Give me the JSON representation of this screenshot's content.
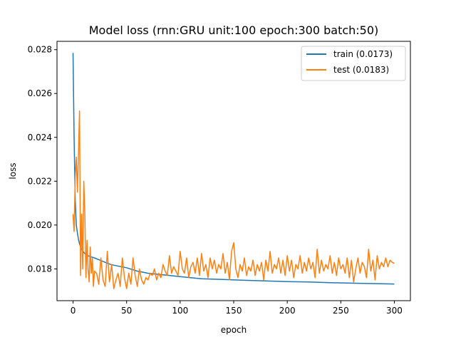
{
  "chart_data": {
    "type": "line",
    "title": "Model loss (rnn:GRU unit:100 epoch:300 batch:50)",
    "xlabel": "epoch",
    "ylabel": "loss",
    "xlim": [
      -15,
      315
    ],
    "ylim": [
      0.01655,
      0.02838
    ],
    "xticks": [
      0,
      50,
      100,
      150,
      200,
      250,
      300
    ],
    "yticks": [
      0.018,
      0.02,
      0.022,
      0.024,
      0.026,
      0.028
    ],
    "ytick_labels": [
      "0.018",
      "0.020",
      "0.022",
      "0.024",
      "0.026",
      "0.028"
    ],
    "grid": false,
    "legend_position": "upper right",
    "series": [
      {
        "name": "train (0.0173)",
        "color": "#1f77b4",
        "x": [
          0,
          1,
          2,
          3,
          4,
          5,
          6,
          7,
          8,
          10,
          12,
          15,
          20,
          25,
          30,
          35,
          40,
          50,
          60,
          70,
          80,
          90,
          100,
          110,
          120,
          140,
          160,
          180,
          200,
          220,
          240,
          260,
          280,
          300
        ],
        "y": [
          0.02785,
          0.024,
          0.0211,
          0.02,
          0.01965,
          0.01935,
          0.01915,
          0.019,
          0.0189,
          0.01875,
          0.01865,
          0.01858,
          0.0185,
          0.0184,
          0.0183,
          0.0182,
          0.01815,
          0.01805,
          0.0179,
          0.0178,
          0.01775,
          0.0177,
          0.01765,
          0.0176,
          0.01755,
          0.01752,
          0.01748,
          0.01745,
          0.01742,
          0.0174,
          0.01737,
          0.01735,
          0.01733,
          0.01731
        ]
      },
      {
        "name": "test (0.0183)",
        "color": "#ff7f0e",
        "x": [
          0,
          1,
          2,
          3,
          4,
          5,
          6,
          7,
          8,
          9,
          10,
          11,
          12,
          13,
          14,
          15,
          16,
          17,
          18,
          19,
          20,
          22,
          24,
          26,
          28,
          30,
          32,
          34,
          36,
          38,
          40,
          42,
          44,
          46,
          48,
          50,
          52,
          54,
          56,
          58,
          60,
          62,
          64,
          66,
          68,
          70,
          72,
          74,
          76,
          78,
          80,
          82,
          84,
          86,
          88,
          90,
          92,
          94,
          96,
          98,
          100,
          102,
          104,
          106,
          108,
          110,
          112,
          114,
          116,
          118,
          120,
          122,
          124,
          126,
          128,
          130,
          132,
          134,
          136,
          138,
          140,
          142,
          144,
          146,
          148,
          150,
          152,
          154,
          156,
          158,
          160,
          162,
          164,
          166,
          168,
          170,
          172,
          174,
          176,
          178,
          180,
          182,
          184,
          186,
          188,
          190,
          192,
          194,
          196,
          198,
          200,
          202,
          204,
          206,
          208,
          210,
          212,
          214,
          216,
          218,
          220,
          222,
          224,
          226,
          228,
          230,
          232,
          234,
          236,
          238,
          240,
          242,
          244,
          246,
          248,
          250,
          252,
          254,
          256,
          258,
          260,
          262,
          264,
          266,
          268,
          270,
          272,
          274,
          276,
          278,
          280,
          282,
          284,
          286,
          288,
          290,
          292,
          294,
          296,
          298,
          300
        ],
        "y": [
          0.0205,
          0.0197,
          0.0222,
          0.0231,
          0.0215,
          0.0232,
          0.0252,
          0.0177,
          0.0205,
          0.018,
          0.022,
          0.0205,
          0.0176,
          0.0193,
          0.018,
          0.0174,
          0.019,
          0.0178,
          0.0185,
          0.0172,
          0.0179,
          0.0178,
          0.0173,
          0.0185,
          0.0175,
          0.0172,
          0.0188,
          0.0174,
          0.0182,
          0.0171,
          0.0175,
          0.0178,
          0.0172,
          0.0185,
          0.0176,
          0.0171,
          0.0178,
          0.0173,
          0.0185,
          0.0177,
          0.0172,
          0.018,
          0.0175,
          0.0173,
          0.0176,
          0.0175,
          0.0178,
          0.0177,
          0.018,
          0.0175,
          0.0178,
          0.0176,
          0.0182,
          0.0179,
          0.0177,
          0.0186,
          0.0178,
          0.0181,
          0.0179,
          0.0177,
          0.0188,
          0.018,
          0.0178,
          0.0185,
          0.0176,
          0.0181,
          0.0183,
          0.0178,
          0.0185,
          0.0177,
          0.0187,
          0.0179,
          0.0182,
          0.0176,
          0.0185,
          0.018,
          0.0184,
          0.0178,
          0.0182,
          0.018,
          0.0187,
          0.0178,
          0.0183,
          0.0175,
          0.0188,
          0.0192,
          0.018,
          0.0176,
          0.0182,
          0.0179,
          0.0185,
          0.0177,
          0.0181,
          0.0179,
          0.0184,
          0.0177,
          0.0182,
          0.0179,
          0.0183,
          0.0175,
          0.0184,
          0.0179,
          0.0188,
          0.0178,
          0.0182,
          0.018,
          0.0185,
          0.0178,
          0.0184,
          0.0177,
          0.0186,
          0.0179,
          0.0184,
          0.0176,
          0.0182,
          0.018,
          0.0186,
          0.0178,
          0.0183,
          0.0179,
          0.0185,
          0.018,
          0.0183,
          0.0176,
          0.0189,
          0.0178,
          0.0184,
          0.0179,
          0.0182,
          0.018,
          0.0186,
          0.0178,
          0.0183,
          0.0177,
          0.0185,
          0.018,
          0.0182,
          0.0178,
          0.0185,
          0.0176,
          0.0184,
          0.0174,
          0.018,
          0.0185,
          0.0178,
          0.0183,
          0.0181,
          0.0176,
          0.0189,
          0.0179,
          0.0184,
          0.0175,
          0.0186,
          0.018,
          0.0183,
          0.0181,
          0.0185,
          0.0181,
          0.0184,
          0.0183,
          0.01825
        ]
      }
    ]
  }
}
